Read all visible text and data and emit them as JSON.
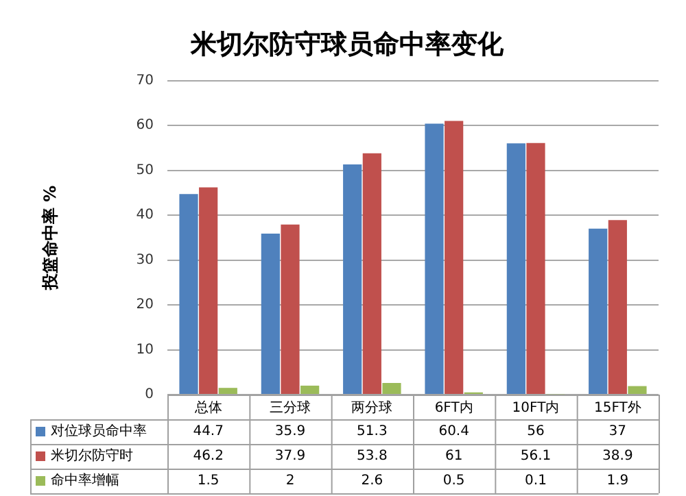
{
  "chart_data": {
    "type": "bar",
    "title": "米切尔防守球员命中率变化",
    "ylabel": "投篮命中率 %",
    "categories": [
      "总体",
      "三分球",
      "两分球",
      "6FT内",
      "10FT内",
      "15FT外"
    ],
    "series": [
      {
        "name": "对位球员命中率",
        "color": "#4f81bd",
        "values": [
          44.7,
          35.9,
          51.3,
          60.4,
          56,
          37
        ]
      },
      {
        "name": "米切尔防守时",
        "color": "#c0504d",
        "values": [
          46.2,
          37.9,
          53.8,
          61,
          56.1,
          38.9
        ]
      },
      {
        "name": "命中率增幅",
        "color": "#9bbb59",
        "values": [
          1.5,
          2,
          2.6,
          0.5,
          0.1,
          1.9
        ]
      }
    ],
    "ylim": [
      0,
      70
    ],
    "yticks": [
      0,
      10,
      20,
      30,
      40,
      50,
      60,
      70
    ],
    "grid": "y",
    "legend": "bottom",
    "data_labels": true
  }
}
